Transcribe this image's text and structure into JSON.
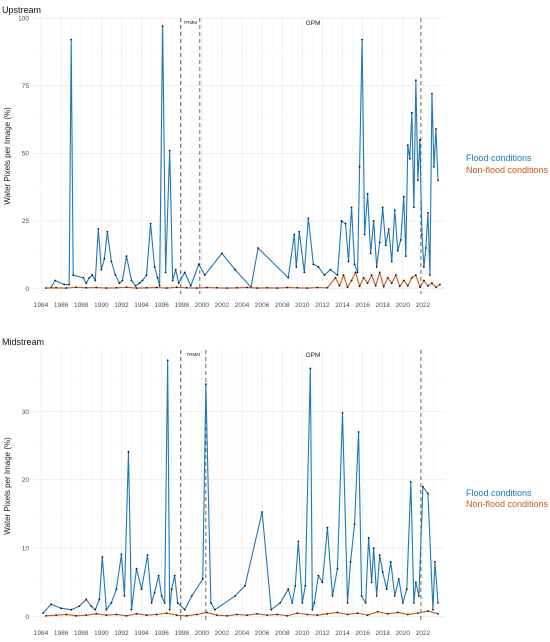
{
  "legend": {
    "flood": "Flood conditions",
    "nonflood": "Non-flood conditions",
    "colors": {
      "flood": "#1f78b4",
      "nonflood": "#c8571b",
      "dot": "#111111"
    }
  },
  "era_labels": {
    "trmm": "TRMM",
    "gpm": "GPM"
  },
  "chart_data": [
    {
      "type": "line",
      "title": "Upstream",
      "ylabel": "Water Pixels per Image (%)",
      "xlabel": "",
      "xlim": [
        1983.2,
        2024.2
      ],
      "ylim": [
        -2,
        100
      ],
      "yticks": [
        0,
        25,
        50,
        75,
        100
      ],
      "xticks": [
        "1984",
        "1986",
        "1988",
        "1990",
        "1992",
        "1994",
        "1996",
        "1998",
        "2000",
        "2002",
        "2004",
        "2006",
        "2008",
        "2010",
        "2012",
        "2014",
        "2016",
        "2018",
        "2020",
        "2022"
      ],
      "vlines": [
        1997.9,
        1999.8,
        2021.8
      ],
      "grid": true,
      "legend_position": "right",
      "series": [
        {
          "name": "Flood conditions",
          "color": "#1f78b4",
          "x": [
            1985,
            1985.4,
            1986.3,
            1986.8,
            1987.0,
            1987.2,
            1988.2,
            1988.5,
            1988.8,
            1989.1,
            1989.4,
            1989.7,
            1990.0,
            1990.3,
            1990.6,
            1991.0,
            1991.4,
            1991.8,
            1992.1,
            1992.5,
            1993.0,
            1993.4,
            1993.8,
            1994.1,
            1994.5,
            1994.9,
            1995.3,
            1995.6,
            1995.8,
            1996.1,
            1996.4,
            1996.8,
            1997.1,
            1997.4,
            1997.7,
            1998.3,
            1998.9,
            1999.7,
            2000.3,
            2002.0,
            2003.3,
            2004.9,
            2005.6,
            2008.6,
            2009.2,
            2009.4,
            2009.7,
            2010.2,
            2010.6,
            2011.1,
            2011.6,
            2012.2,
            2012.8,
            2013.5,
            2013.9,
            2014.3,
            2014.6,
            2014.9,
            2015.2,
            2015.5,
            2015.7,
            2015.95,
            2016.2,
            2016.5,
            2016.8,
            2017.1,
            2017.4,
            2017.7,
            2018.0,
            2018.3,
            2018.6,
            2018.9,
            2019.2,
            2019.5,
            2019.8,
            2020.1,
            2020.3,
            2020.5,
            2020.7,
            2020.9,
            2021.1,
            2021.3,
            2021.5,
            2021.7,
            2021.9,
            2022.1,
            2022.3,
            2022.5,
            2022.7,
            2022.9,
            2023.1,
            2023.3,
            2023.5
          ],
          "values": [
            0.5,
            3,
            1.5,
            1.5,
            92,
            5,
            4,
            2,
            4,
            5,
            3,
            22,
            7,
            11,
            21,
            10,
            5,
            2,
            3,
            12,
            3,
            1,
            2,
            3,
            5,
            24,
            8,
            4,
            1,
            97,
            6,
            51,
            3,
            7,
            2,
            6,
            1,
            9,
            5,
            13,
            7,
            0.5,
            15,
            4,
            20,
            8,
            21,
            6,
            26,
            9,
            8,
            5,
            7,
            5,
            25,
            24,
            10,
            30,
            9,
            6,
            45,
            92,
            20,
            35,
            13,
            25,
            8,
            17,
            30,
            16,
            22,
            10,
            29,
            14,
            18,
            34,
            12,
            53,
            48,
            65,
            30,
            77,
            40,
            55,
            20,
            8,
            15,
            28,
            5,
            72,
            45,
            59,
            40
          ]
        },
        {
          "name": "Non-flood conditions",
          "color": "#c8571b",
          "x": [
            1984.5,
            1985.5,
            1986.5,
            1987.5,
            1988.5,
            1989.5,
            1990.5,
            1991.5,
            1992.5,
            1993.5,
            1994.5,
            1995.5,
            1996.5,
            1997.5,
            1998.5,
            1999.5,
            2000.5,
            2001.5,
            2002.5,
            2003.5,
            2004.5,
            2005.5,
            2006.5,
            2007.5,
            2008.5,
            2009.5,
            2010.5,
            2011.5,
            2012.5,
            2013.3,
            2013.7,
            2014.1,
            2014.5,
            2014.9,
            2015.3,
            2015.7,
            2016.1,
            2016.5,
            2016.9,
            2017.3,
            2017.7,
            2018.1,
            2018.5,
            2018.9,
            2019.3,
            2019.7,
            2020.1,
            2020.5,
            2020.9,
            2021.3,
            2021.7,
            2022.1,
            2022.5,
            2022.9,
            2023.3,
            2023.7
          ],
          "values": [
            0.2,
            0.3,
            0.2,
            0.5,
            0.3,
            0.4,
            0.2,
            0.3,
            0.5,
            0.2,
            0.3,
            0.4,
            0.2,
            0.5,
            0.3,
            0.2,
            0.4,
            0.3,
            0.2,
            0.3,
            0.4,
            0.2,
            0.3,
            0.2,
            0.4,
            0.3,
            0.2,
            0.4,
            0.3,
            4,
            1,
            5,
            0.5,
            3,
            6,
            0.8,
            4,
            2,
            5,
            1,
            6,
            0.7,
            4,
            2,
            5,
            0.8,
            3,
            1,
            4,
            5,
            0.6,
            3,
            1,
            2,
            0.5,
            1.5
          ]
        }
      ]
    },
    {
      "type": "line",
      "title": "Midstream",
      "ylabel": "Water Pixels per Image (%)",
      "xlabel": "",
      "xlim": [
        1983.2,
        2024.2
      ],
      "ylim": [
        -0.8,
        39
      ],
      "yticks": [
        0,
        10,
        20,
        30
      ],
      "xticks": [
        "1984",
        "1986",
        "1988",
        "1990",
        "1992",
        "1994",
        "1996",
        "1998",
        "2000",
        "2002",
        "2004",
        "2006",
        "2008",
        "2010",
        "2012",
        "2014",
        "2016",
        "2018",
        "2020",
        "2022"
      ],
      "vlines": [
        1997.9,
        2000.4,
        2021.8
      ],
      "grid": true,
      "legend_position": "right",
      "series": [
        {
          "name": "Flood conditions",
          "color": "#1f78b4",
          "x": [
            1984.2,
            1985.0,
            1986.0,
            1987.0,
            1987.8,
            1988.5,
            1989.0,
            1989.4,
            1989.8,
            1990.1,
            1990.5,
            1991.0,
            1991.5,
            1992.0,
            1992.3,
            1992.7,
            1993.0,
            1993.5,
            1994.0,
            1994.6,
            1995.0,
            1995.3,
            1995.7,
            1996.0,
            1996.3,
            1996.6,
            1996.8,
            1997.0,
            1997.3,
            1997.6,
            1998.3,
            1999.0,
            2000.1,
            2000.4,
            2000.9,
            2001.3,
            2003.3,
            2004.3,
            2006.0,
            2006.9,
            2007.8,
            2008.6,
            2009.0,
            2009.3,
            2009.6,
            2010.0,
            2010.3,
            2010.8,
            2011.0,
            2011.2,
            2011.6,
            2012.0,
            2012.5,
            2013.0,
            2013.5,
            2014.0,
            2014.5,
            2014.8,
            2015.2,
            2015.6,
            2015.9,
            2016.3,
            2016.6,
            2016.9,
            2017.1,
            2017.4,
            2017.7,
            2018.0,
            2018.4,
            2018.8,
            2019.2,
            2019.6,
            2020.0,
            2020.4,
            2020.8,
            2021.1,
            2021.3,
            2021.6,
            2022.0,
            2022.5,
            2023.0,
            2023.2,
            2023.5
          ],
          "values": [
            0.5,
            1.8,
            1.2,
            1.0,
            1.5,
            2.5,
            1.5,
            1.0,
            2.5,
            8.7,
            1.0,
            2.0,
            4.0,
            9.1,
            3.0,
            24.1,
            1.0,
            7.0,
            4.0,
            9.0,
            2.0,
            3.5,
            6.0,
            3.0,
            2.0,
            37.5,
            1.0,
            4.0,
            6.0,
            2.0,
            1.0,
            3.0,
            5.5,
            34.0,
            2.0,
            1.0,
            3.0,
            4.5,
            15.3,
            1.0,
            2.0,
            4.0,
            2.0,
            4.5,
            11.0,
            2.0,
            4.5,
            36.3,
            1.0,
            2.0,
            6.0,
            5.0,
            13.0,
            3.0,
            7.0,
            29.8,
            2.0,
            8.0,
            13.5,
            27.0,
            3.0,
            2.0,
            11.5,
            5.0,
            10.0,
            3.0,
            9.0,
            6.5,
            4.0,
            8.0,
            3.0,
            5.5,
            2.0,
            4.0,
            19.7,
            2.0,
            5.0,
            3.0,
            19.0,
            18.0,
            1.0,
            8.0,
            2.0
          ]
        },
        {
          "name": "Non-flood conditions",
          "color": "#c8571b",
          "x": [
            1984.5,
            1985.5,
            1986.5,
            1987.5,
            1988.5,
            1989.5,
            1990.5,
            1991.5,
            1992.5,
            1993.5,
            1994.5,
            1995.5,
            1996.5,
            1997.5,
            1998.5,
            1999.5,
            2000.5,
            2001.5,
            2002.5,
            2003.5,
            2004.5,
            2005.5,
            2006.5,
            2007.5,
            2008.5,
            2009.5,
            2010.5,
            2011.5,
            2012.5,
            2013.5,
            2014.5,
            2015.5,
            2016.5,
            2017.5,
            2018.5,
            2019.5,
            2020.5,
            2021.5,
            2022.5,
            2023.5
          ],
          "values": [
            0.1,
            0.2,
            0.3,
            0.1,
            0.2,
            0.4,
            0.2,
            0.3,
            0.1,
            0.4,
            0.2,
            0.3,
            0.5,
            0.2,
            0.1,
            0.3,
            0.6,
            0.2,
            0.1,
            0.3,
            0.2,
            0.4,
            0.2,
            0.3,
            0.1,
            0.5,
            0.3,
            0.2,
            0.4,
            0.6,
            0.3,
            0.5,
            0.2,
            0.7,
            0.4,
            0.6,
            0.3,
            0.5,
            0.8,
            0.4
          ]
        }
      ]
    }
  ]
}
